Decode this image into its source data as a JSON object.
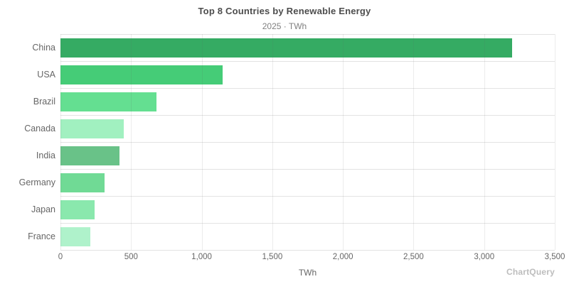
{
  "chart": {
    "title": "Top 8 Countries by Renewable Energy",
    "subtitle": "2025 · TWh",
    "xlabel": "TWh",
    "watermark": "ChartQuery"
  },
  "chart_data": {
    "type": "bar",
    "orientation": "horizontal",
    "title": "Top 8 Countries by Renewable Energy",
    "subtitle": "2025 · TWh",
    "xlabel": "TWh",
    "ylabel": "",
    "xlim": [
      0,
      3500
    ],
    "grid": true,
    "legend": "none",
    "categories": [
      "China",
      "USA",
      "Brazil",
      "Canada",
      "India",
      "Germany",
      "Japan",
      "France"
    ],
    "values": [
      3200,
      1150,
      680,
      450,
      420,
      310,
      240,
      210
    ],
    "bar_colors": [
      "#35ab63",
      "#45cc77",
      "#64df91",
      "#a1f0c0",
      "#69c288",
      "#70da95",
      "#8ae8ad",
      "#aff2cb"
    ],
    "xticks": {
      "values": [
        0,
        500,
        1000,
        1500,
        2000,
        2500,
        3000,
        3500
      ],
      "labels": [
        "0",
        "500",
        "1,000",
        "1,500",
        "2,000",
        "2,500",
        "3,000",
        "3,500"
      ]
    },
    "colors": {
      "grid": "#e3e3e3",
      "grid_overlay": "rgba(100,100,100,0.12)",
      "title_text": "#4d4d4d",
      "subtitle_text": "#808080",
      "axis_text": "#666666",
      "watermark_text": "#bdbdbd"
    }
  }
}
